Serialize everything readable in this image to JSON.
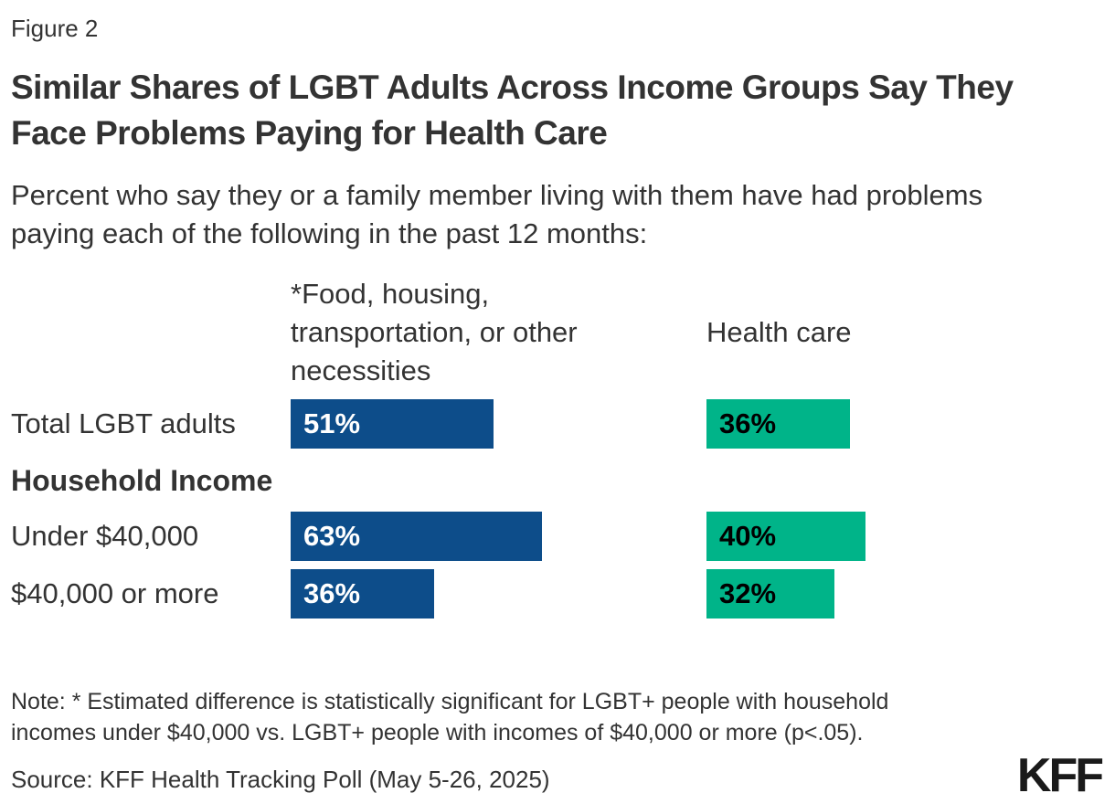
{
  "figure_label": "Figure 2",
  "title": "Similar Shares of LGBT Adults Across Income Groups Say They\nFace Problems Paying for Health Care",
  "subtitle": "Percent who say they or a family member living with them have had problems\npaying each of the following in the past 12 months:",
  "chart_data": {
    "type": "bar",
    "orientation": "horizontal",
    "categories": [
      "Total LGBT adults",
      "Under $40,000",
      "$40,000 or more"
    ],
    "section_label": "Household Income",
    "series": [
      {
        "name": "*Food, housing, transportation, or other necessities",
        "color": "#0d4d8a",
        "label_color": "#ffffff",
        "values": [
          51,
          63,
          36
        ]
      },
      {
        "name": "Health care",
        "color": "#00b489",
        "label_color": "#000000",
        "values": [
          36,
          40,
          32
        ]
      }
    ],
    "value_suffix": "%",
    "xlim": [
      0,
      100
    ],
    "grid": false,
    "legend_position": "column-headers"
  },
  "note": "Note: * Estimated difference is statistically significant for LGBT+ people with household\nincomes under $40,000 vs. LGBT+ people with incomes of $40,000 or more (p<.05).",
  "source": "Source: KFF Health Tracking Poll (May 5-26, 2025)",
  "logo_text": "KFF",
  "colors": {
    "text": "#333333",
    "background": "#ffffff",
    "bar_blue": "#0d4d8a",
    "bar_green": "#00b489"
  }
}
